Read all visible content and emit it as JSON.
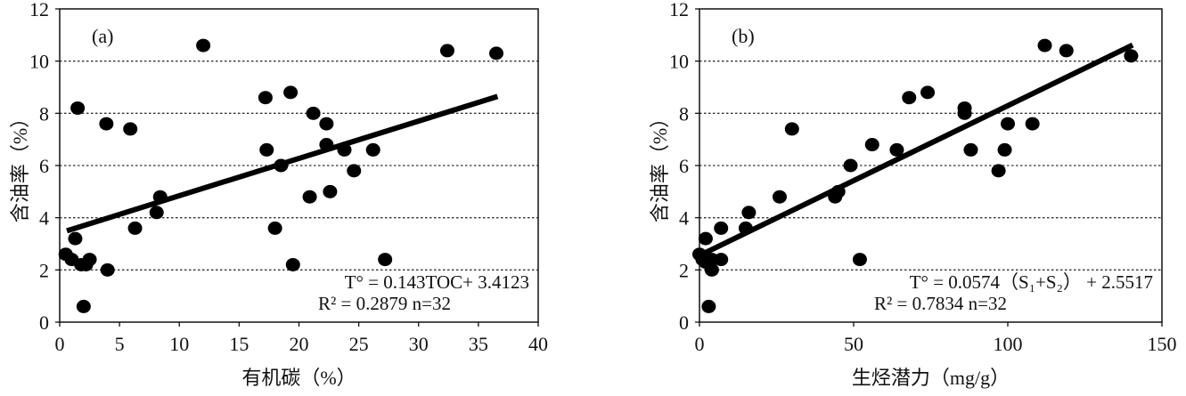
{
  "chart_data": [
    {
      "type": "scatter",
      "panel_label": "(a)",
      "xlabel": "有机碳（%）",
      "ylabel": "含油率（%）",
      "xlim": [
        0,
        40
      ],
      "ylim": [
        0,
        12
      ],
      "xticks": [
        0,
        5,
        10,
        15,
        20,
        25,
        30,
        35,
        40
      ],
      "yticks": [
        0,
        2,
        4,
        6,
        8,
        10,
        12
      ],
      "grid": "horizontal-dotted",
      "points": [
        [
          0.5,
          2.6
        ],
        [
          1,
          2.4
        ],
        [
          1.3,
          3.2
        ],
        [
          1.5,
          8.2
        ],
        [
          1.8,
          2.2
        ],
        [
          2,
          0.6
        ],
        [
          2.2,
          2.2
        ],
        [
          2.5,
          2.4
        ],
        [
          3.9,
          7.6
        ],
        [
          4,
          2.0
        ],
        [
          5.9,
          7.4
        ],
        [
          6.3,
          3.6
        ],
        [
          8.1,
          4.2
        ],
        [
          8.4,
          4.8
        ],
        [
          12,
          10.6
        ],
        [
          17.2,
          8.6
        ],
        [
          17.3,
          6.6
        ],
        [
          18,
          3.6
        ],
        [
          18.5,
          6.0
        ],
        [
          19.3,
          8.8
        ],
        [
          19.5,
          2.2
        ],
        [
          20.9,
          4.8
        ],
        [
          21.2,
          8.0
        ],
        [
          22.3,
          7.6
        ],
        [
          22.3,
          6.8
        ],
        [
          22.6,
          5.0
        ],
        [
          23.8,
          6.6
        ],
        [
          24.6,
          5.8
        ],
        [
          26.2,
          6.6
        ],
        [
          27.2,
          2.4
        ],
        [
          32.4,
          10.4
        ],
        [
          36.5,
          10.3
        ]
      ],
      "fit": {
        "slope": 0.143,
        "intercept": 3.4123,
        "x_range": [
          0.6,
          36.6
        ]
      },
      "equation_line1": "T° = 0.143TOC+ 3.4123",
      "equation_line2": "R² = 0.2879    n=32"
    },
    {
      "type": "scatter",
      "panel_label": "(b)",
      "xlabel": "生烃潜力（mg/g）",
      "ylabel": "含油率（%）",
      "xlim": [
        0,
        150
      ],
      "ylim": [
        0,
        12
      ],
      "xticks": [
        0,
        50,
        100,
        150
      ],
      "yticks": [
        0,
        2,
        4,
        6,
        8,
        10,
        12
      ],
      "grid": "horizontal-dotted",
      "points": [
        [
          0,
          2.6
        ],
        [
          1,
          2.4
        ],
        [
          2,
          3.2
        ],
        [
          2,
          2.3
        ],
        [
          3,
          2.3
        ],
        [
          3,
          0.6
        ],
        [
          4,
          2.0
        ],
        [
          4,
          2.4
        ],
        [
          7,
          2.4
        ],
        [
          7,
          3.6
        ],
        [
          15,
          3.6
        ],
        [
          16,
          4.2
        ],
        [
          26,
          4.8
        ],
        [
          30,
          7.4
        ],
        [
          44,
          4.8
        ],
        [
          45,
          5.0
        ],
        [
          49,
          6.0
        ],
        [
          52,
          2.4
        ],
        [
          56,
          6.8
        ],
        [
          64,
          6.6
        ],
        [
          68,
          8.6
        ],
        [
          74,
          8.8
        ],
        [
          86,
          8.2
        ],
        [
          86,
          8.0
        ],
        [
          88,
          6.6
        ],
        [
          97,
          5.8
        ],
        [
          99,
          6.6
        ],
        [
          100,
          7.6
        ],
        [
          108,
          7.6
        ],
        [
          112,
          10.6
        ],
        [
          119,
          10.4
        ],
        [
          140,
          10.2
        ]
      ],
      "fit": {
        "slope": 0.0574,
        "intercept": 2.5517,
        "x_range": [
          0,
          140.5
        ]
      },
      "equation_line1": "T° = 0.0574（S₁+S₂） + 2.5517",
      "equation_line2": "R² = 0.7834    n=32"
    }
  ]
}
